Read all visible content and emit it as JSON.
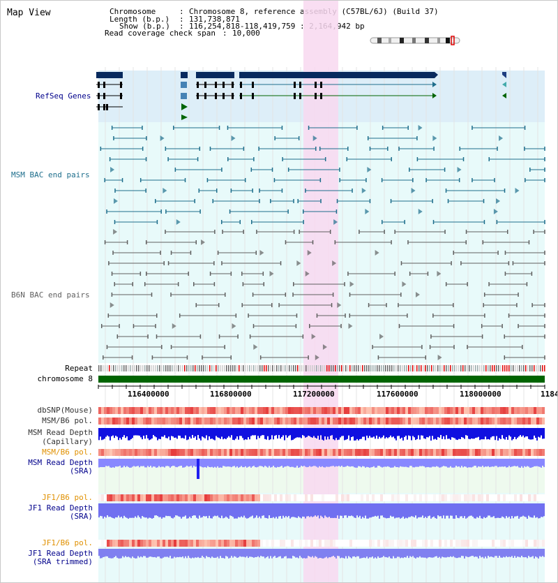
{
  "title": "Map View",
  "info": {
    "chromosome_label": "Chromosome",
    "chromosome_value": "Chromosome 8, reference assembly (C57BL/6J) (Build 37)",
    "length_label": "Length (b.p.)",
    "length_value": "131,738,871",
    "show_label": "Show (b.p.)",
    "show_value": "116,254,818-118,419,759 : 2,164,942 bp",
    "coverage_label": "Read coverage check span",
    "coverage_value": "10,000"
  },
  "tracks": {
    "refseq": "RefSeq Genes",
    "msm_bac": "MSM BAC end pairs",
    "b6n_bac": "B6N BAC end pairs",
    "repeat": "Repeat",
    "chromosome": "chromosome 8",
    "dbsnp": "dbSNP(Mouse)",
    "msm_b6_pol_1": "MSM/B6 pol.",
    "msm_read_depth_cap_1": "MSM Read Depth",
    "msm_read_depth_cap_2": "(Capillary)",
    "msm_b6_pol_2": "MSM/B6 pol.",
    "msm_read_depth_sra_1": "MSM Read Depth",
    "msm_read_depth_sra_2": "(SRA)",
    "jf1_b6_pol_1": "JF1/B6 pol.",
    "jf1_read_depth_sra_1": "JF1 Read Depth",
    "jf1_read_depth_sra_2": "(SRA)",
    "jf1_b6_pol_2": "JF1/B6 pol.",
    "jf1_read_depth_trim_1": "JF1 Read Depth",
    "jf1_read_depth_trim_2": "(SRA trimmed)"
  },
  "axis_ticks": [
    "116400000",
    "116800000",
    "117200000",
    "117600000",
    "118000000",
    "1184"
  ],
  "colors": {
    "refseq_bg": "#ddeef8",
    "bac_bg": "#e8fafa",
    "highlight": "#f8d8f0",
    "msm_color": "#1e6e8c",
    "b6n_color": "#606060",
    "chromosome_bar": "#006400",
    "snp_red": "#e83030",
    "depth_blue": "#1010e0",
    "depth_light": "#8888ff",
    "label_blue": "#00008b",
    "label_orange": "#e09000",
    "label_teal": "#1e6e8c"
  }
}
